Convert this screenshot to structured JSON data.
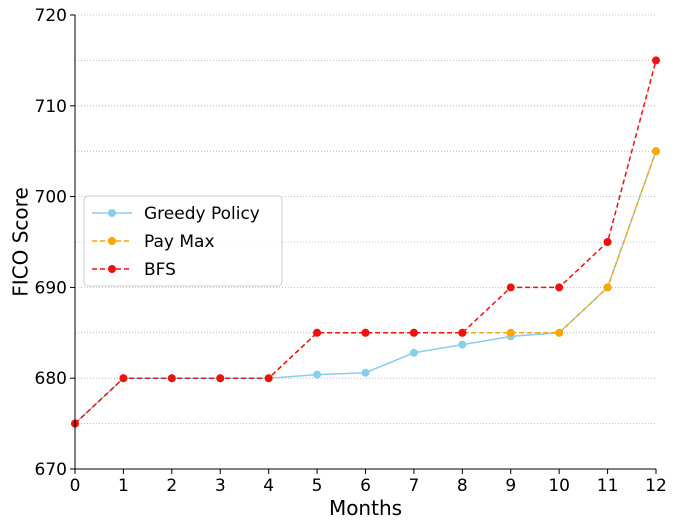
{
  "chart_data": {
    "type": "line",
    "xlabel": "Months",
    "ylabel": "FICO Score",
    "xlim": [
      0,
      12
    ],
    "ylim": [
      670,
      720
    ],
    "x": [
      0,
      1,
      2,
      3,
      4,
      5,
      6,
      7,
      8,
      9,
      10,
      11,
      12
    ],
    "xticks": [
      "0",
      "1",
      "2",
      "3",
      "4",
      "5",
      "6",
      "7",
      "8",
      "9",
      "10",
      "11",
      "12"
    ],
    "yticks": [
      "670",
      "680",
      "690",
      "700",
      "710",
      "720"
    ],
    "grid": "horizontal dotted (major and minor)",
    "legend": "center-left",
    "series": [
      {
        "name": "Greedy Policy",
        "color": "#87ceeb",
        "linestyle": "solid",
        "values": [
          675,
          680,
          680,
          680,
          680,
          680.4,
          680.6,
          682.8,
          683.7,
          684.6,
          685,
          690,
          705
        ]
      },
      {
        "name": "Pay Max",
        "color": "#ffa500",
        "linestyle": "dashed",
        "values": [
          675,
          680,
          680,
          680,
          680,
          685,
          685,
          685,
          685,
          685,
          685,
          690,
          705
        ]
      },
      {
        "name": "BFS",
        "color": "#ee1111",
        "linestyle": "dashed",
        "values": [
          675,
          680,
          680,
          680,
          680,
          685,
          685,
          685,
          685,
          690,
          690,
          695,
          715
        ]
      }
    ]
  }
}
